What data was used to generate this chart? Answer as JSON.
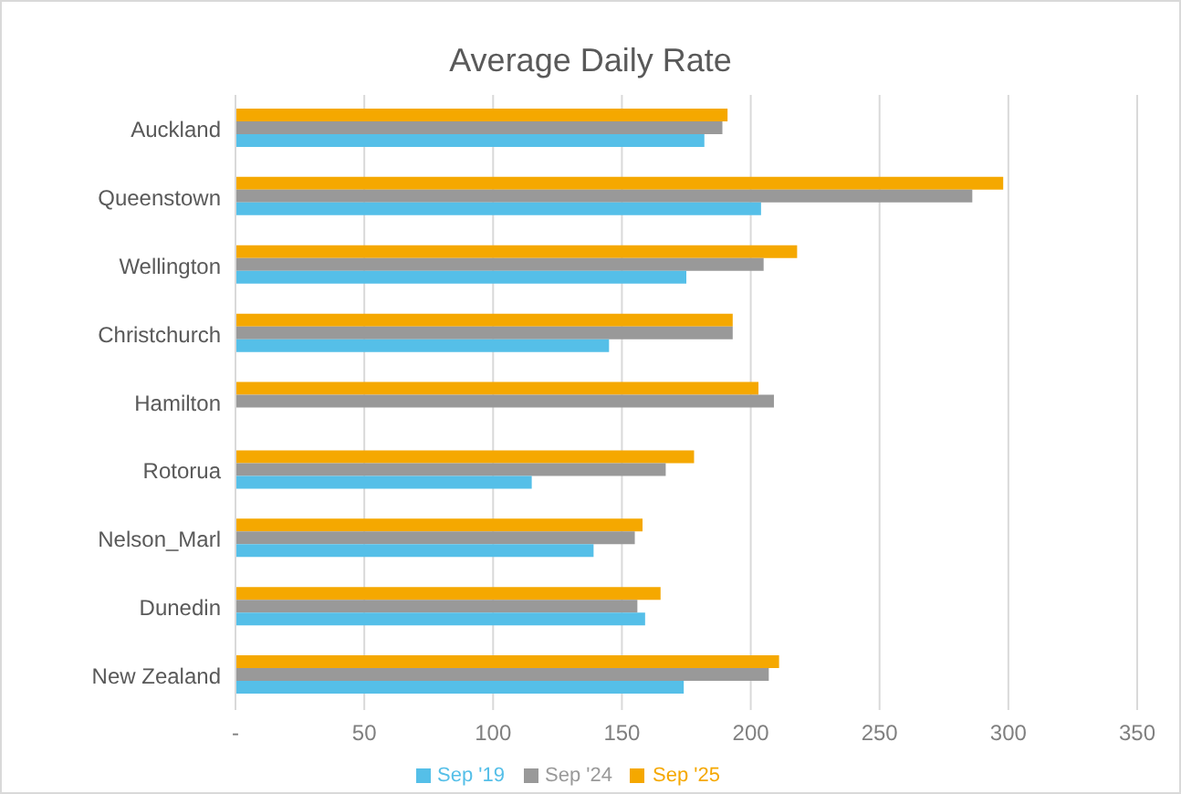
{
  "chart_data": {
    "type": "bar",
    "orientation": "horizontal",
    "title": "Average Daily Rate",
    "categories": [
      "Auckland",
      "Queenstown",
      "Wellington",
      "Christchurch",
      "Hamilton",
      "Rotorua",
      "Nelson_Marl",
      "Dunedin",
      "New Zealand"
    ],
    "series": [
      {
        "name": "Sep '25",
        "color": "#f5a800",
        "values": [
          191,
          298,
          218,
          193,
          203,
          178,
          158,
          165,
          211
        ]
      },
      {
        "name": "Sep '24",
        "color": "#999999",
        "values": [
          189,
          286,
          205,
          193,
          209,
          167,
          155,
          156,
          207
        ]
      },
      {
        "name": "Sep '19",
        "color": "#55bfe8",
        "values": [
          182,
          204,
          175,
          145,
          null,
          115,
          139,
          159,
          174
        ]
      }
    ],
    "xlim": [
      0,
      350
    ],
    "xticks": [
      {
        "value": 0,
        "label": "-"
      },
      50,
      100,
      150,
      200,
      250,
      300,
      350
    ],
    "grid": "x",
    "legend": "bottom"
  }
}
